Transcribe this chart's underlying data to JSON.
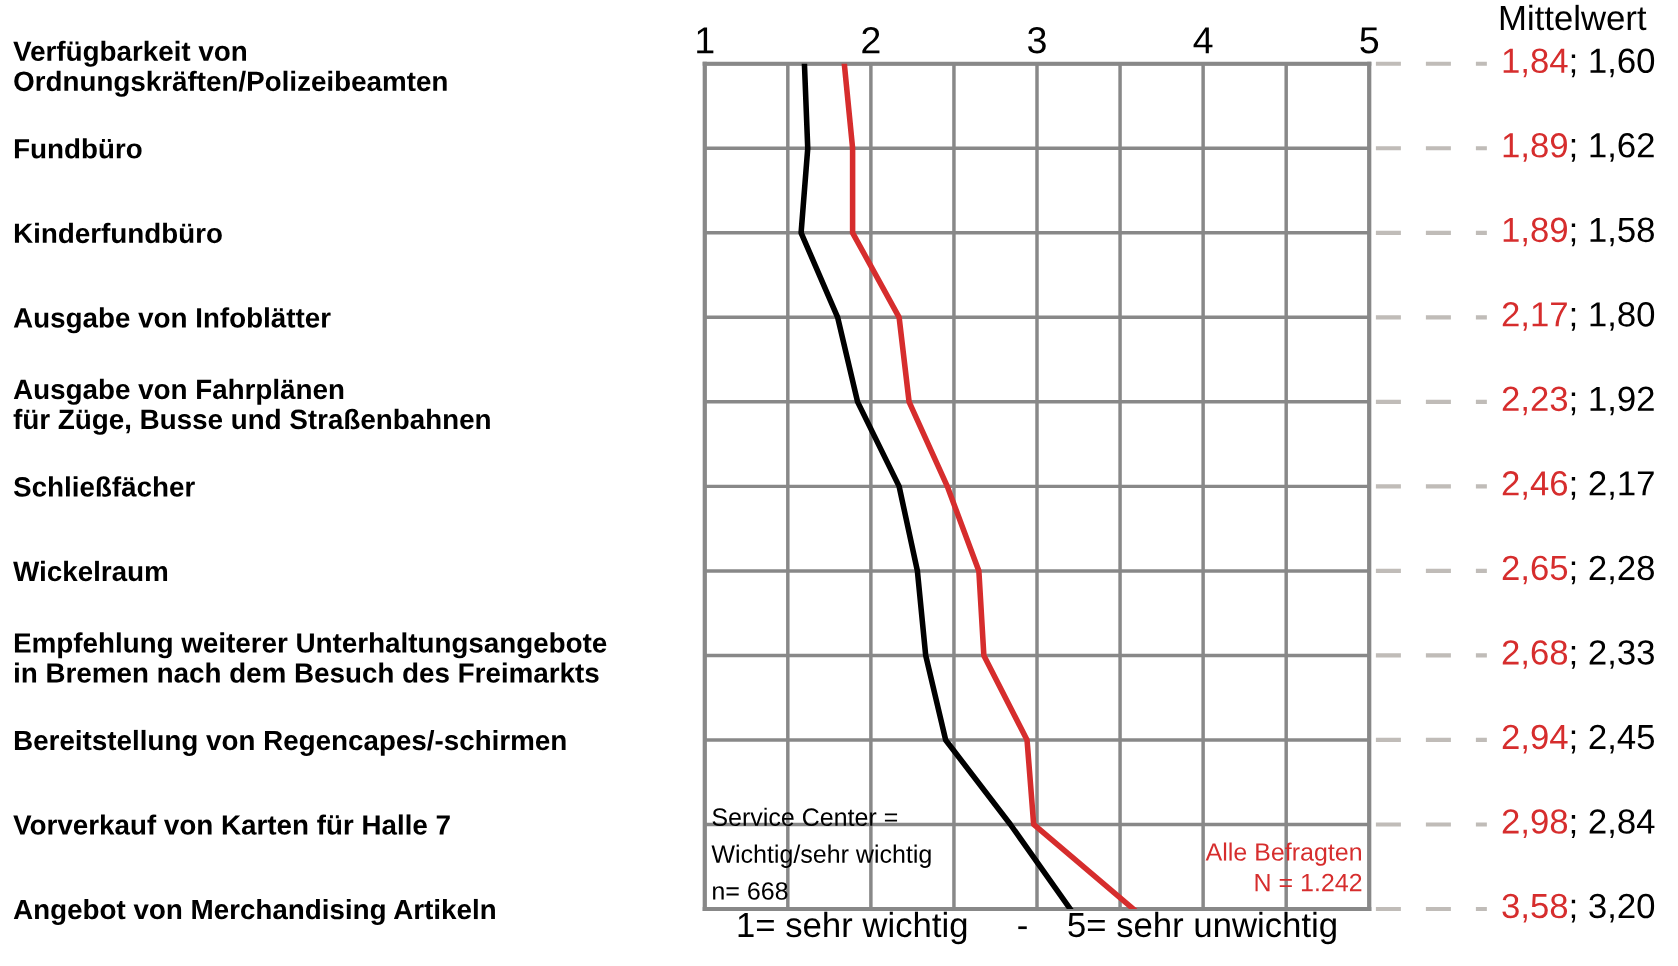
{
  "chart_data": {
    "type": "line",
    "orientation": "horizontal",
    "categories": [
      "Verfügbarkeit von\nOrdnungskräften/Polizeibeamten",
      "Fundbüro",
      "Kinderfundbüro",
      "Ausgabe von Infoblätter",
      "Ausgabe von Fahrplänen\nfür Züge, Busse und Straßenbahnen",
      "Schließfächer",
      "Wickelraum",
      "Empfehlung weiterer Unterhaltungsangebote\nin Bremen nach dem Besuch des Freimarkts",
      "Bereitstellung von Regencapes/-schirmen",
      "Vorverkauf von Karten für Halle 7",
      "Angebot von Merchandising Artikeln"
    ],
    "series": [
      {
        "name": "Alle Befragten\nN = 1.242",
        "color": "#d62d2d",
        "values": [
          1.84,
          1.89,
          1.89,
          2.17,
          2.23,
          2.46,
          2.65,
          2.68,
          2.94,
          2.98,
          3.58
        ],
        "value_labels": [
          "1,84",
          "1,89",
          "1,89",
          "2,17",
          "2,23",
          "2,46",
          "2,65",
          "2,68",
          "2,94",
          "2,98",
          "3,58"
        ]
      },
      {
        "name": "Service Center =\nWichtig/sehr wichtig\nn= 668",
        "color": "#000000",
        "values": [
          1.6,
          1.62,
          1.58,
          1.8,
          1.92,
          2.17,
          2.28,
          2.33,
          2.45,
          2.84,
          3.2
        ],
        "value_labels": [
          "; 1,60",
          "; 1,62",
          "; 1,58",
          "; 1,80",
          "; 1,92",
          "; 2,17",
          "; 2,28",
          "; 2,33",
          "; 2,45",
          "; 2,84",
          "; 3,20"
        ]
      }
    ],
    "xlim": [
      1,
      5
    ],
    "xticks": [
      1,
      {
        "value": 1.5,
        "label": null
      },
      2,
      {
        "value": 2.5,
        "label": null
      },
      3,
      {
        "value": 3.5,
        "label": null
      },
      4,
      {
        "value": 4.5,
        "label": null
      },
      5
    ],
    "xlabel": "1= sehr wichtig     -    5= sehr unwichtig",
    "annotations": [
      "Mittelwert"
    ],
    "grid": true,
    "marker": "none",
    "line_style": "solid",
    "legend": false
  }
}
